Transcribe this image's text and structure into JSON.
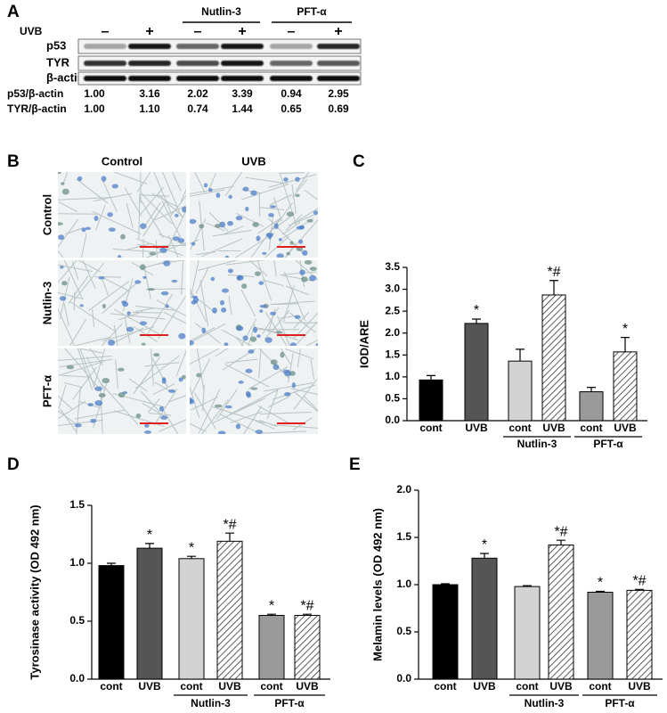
{
  "figure": {
    "panel_a": {
      "letter": "A",
      "treatment": "UVB",
      "signs": [
        "–",
        "+",
        "–",
        "+",
        "–",
        "+"
      ],
      "groups": [
        "Nutlin-3",
        "PFT-α"
      ],
      "rows": [
        "p53",
        "TYR",
        "β-actin"
      ],
      "ratios": [
        {
          "label": "p53/β-actin",
          "values": [
            "1.00",
            "3.16",
            "2.02",
            "3.39",
            "0.94",
            "2.95"
          ]
        },
        {
          "label": "TYR/β-actin",
          "values": [
            "1.00",
            "1.10",
            "0.74",
            "1.44",
            "0.65",
            "0.69"
          ]
        }
      ]
    },
    "panel_b": {
      "letter": "B",
      "columns": [
        "Control",
        "UVB"
      ],
      "rows": [
        "Control",
        "Nutlin-3",
        "PFT-α"
      ]
    }
  },
  "chart_data": [
    {
      "type": "bar",
      "panel": "C",
      "ylabel": "IOD/ARE",
      "categories": [
        "cont",
        "UVB",
        "cont",
        "UVB",
        "cont",
        "UVB"
      ],
      "category_groups": [
        null,
        null,
        "Nutlin-3",
        "Nutlin-3",
        "PFT-α",
        "PFT-α"
      ],
      "values": [
        0.93,
        2.22,
        1.36,
        2.87,
        0.66,
        1.57
      ],
      "errors": [
        0.1,
        0.1,
        0.27,
        0.33,
        0.1,
        0.33
      ],
      "annotations": [
        null,
        "*",
        null,
        "*#",
        null,
        "*"
      ],
      "colors": [
        "#000000",
        "#555555",
        "#d3d3d3",
        "#ffffff",
        "#9a9a9a",
        "#ffffff"
      ],
      "hatch": [
        false,
        false,
        false,
        true,
        false,
        true
      ],
      "ylim": [
        0,
        3.5
      ],
      "yticks": [
        {
          "value": 0,
          "label": "0.0"
        },
        0.5,
        {
          "value": 1,
          "label": "1.0"
        },
        1.5,
        {
          "value": 2,
          "label": "2.0"
        },
        2.5,
        {
          "value": 3,
          "label": "3.0"
        },
        3.5
      ]
    },
    {
      "type": "bar",
      "panel": "D",
      "ylabel": "Tyrosinase activity (OD 492 nm)",
      "categories": [
        "cont",
        "UVB",
        "cont",
        "UVB",
        "cont",
        "UVB"
      ],
      "category_groups": [
        null,
        null,
        "Nutlin-3",
        "Nutlin-3",
        "PFT-α",
        "PFT-α"
      ],
      "values": [
        0.98,
        1.13,
        1.04,
        1.19,
        0.55,
        0.55
      ],
      "errors": [
        0.02,
        0.04,
        0.02,
        0.07,
        0.01,
        0.01
      ],
      "annotations": [
        null,
        "*",
        "*",
        "*#",
        "*",
        "*#"
      ],
      "colors": [
        "#000000",
        "#555555",
        "#d3d3d3",
        "#ffffff",
        "#9a9a9a",
        "#ffffff"
      ],
      "hatch": [
        false,
        false,
        false,
        true,
        false,
        true
      ],
      "ylim": [
        0,
        1.5
      ],
      "yticks": [
        {
          "value": 0,
          "label": "0.0"
        },
        0.5,
        {
          "value": 1,
          "label": "1.0"
        },
        1.5
      ]
    },
    {
      "type": "bar",
      "panel": "E",
      "ylabel": "Melamin levels (OD 492 nm)",
      "categories": [
        "cont",
        "UVB",
        "cont",
        "UVB",
        "cont",
        "UVB"
      ],
      "category_groups": [
        null,
        null,
        "Nutlin-3",
        "Nutlin-3",
        "PFT-α",
        "PFT-α"
      ],
      "values": [
        1.0,
        1.28,
        0.98,
        1.42,
        0.92,
        0.94
      ],
      "errors": [
        0.01,
        0.05,
        0.01,
        0.05,
        0.01,
        0.01
      ],
      "annotations": [
        null,
        "*",
        null,
        "*#",
        "*",
        "*#"
      ],
      "colors": [
        "#000000",
        "#555555",
        "#d3d3d3",
        "#ffffff",
        "#9a9a9a",
        "#ffffff"
      ],
      "hatch": [
        false,
        false,
        false,
        true,
        false,
        true
      ],
      "ylim": [
        0,
        2
      ],
      "yticks": [
        {
          "value": 0,
          "label": "0.0"
        },
        0.5,
        {
          "value": 1,
          "label": "1.0"
        },
        1.5,
        {
          "value": 2,
          "label": "2.0"
        }
      ]
    }
  ]
}
